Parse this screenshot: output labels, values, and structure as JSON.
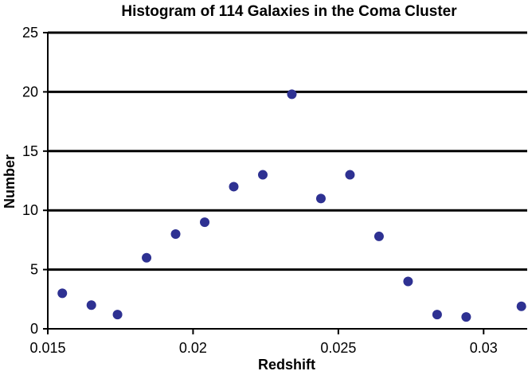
{
  "chart_data": {
    "type": "scatter",
    "title": "Histogram of 114 Galaxies in the Coma Cluster",
    "xlabel": "Redshift",
    "ylabel": "Number",
    "xlim": [
      0.015,
      0.0315
    ],
    "ylim": [
      0,
      25
    ],
    "x_ticks": [
      {
        "value": 0.015,
        "label": "0.015"
      },
      {
        "value": 0.02,
        "label": "0.02"
      },
      {
        "value": 0.025,
        "label": "0.025"
      },
      {
        "value": 0.03,
        "label": "0.03"
      }
    ],
    "y_ticks": [
      {
        "value": 0,
        "label": "0"
      },
      {
        "value": 5,
        "label": "5"
      },
      {
        "value": 10,
        "label": "10"
      },
      {
        "value": 15,
        "label": "15"
      },
      {
        "value": 20,
        "label": "20"
      },
      {
        "value": 25,
        "label": "25"
      }
    ],
    "grid": "horizontal",
    "series": [
      {
        "color": "#2e3192",
        "points": [
          {
            "x": 0.0155,
            "y": 3
          },
          {
            "x": 0.0165,
            "y": 2
          },
          {
            "x": 0.0174,
            "y": 1.2
          },
          {
            "x": 0.0184,
            "y": 6
          },
          {
            "x": 0.0194,
            "y": 8
          },
          {
            "x": 0.0204,
            "y": 9
          },
          {
            "x": 0.0214,
            "y": 12
          },
          {
            "x": 0.0224,
            "y": 13
          },
          {
            "x": 0.0234,
            "y": 19.8
          },
          {
            "x": 0.0244,
            "y": 11
          },
          {
            "x": 0.0254,
            "y": 13
          },
          {
            "x": 0.0264,
            "y": 7.8
          },
          {
            "x": 0.0274,
            "y": 4
          },
          {
            "x": 0.0284,
            "y": 1.2
          },
          {
            "x": 0.0294,
            "y": 1
          },
          {
            "x": 0.0313,
            "y": 1.9
          }
        ]
      }
    ]
  }
}
